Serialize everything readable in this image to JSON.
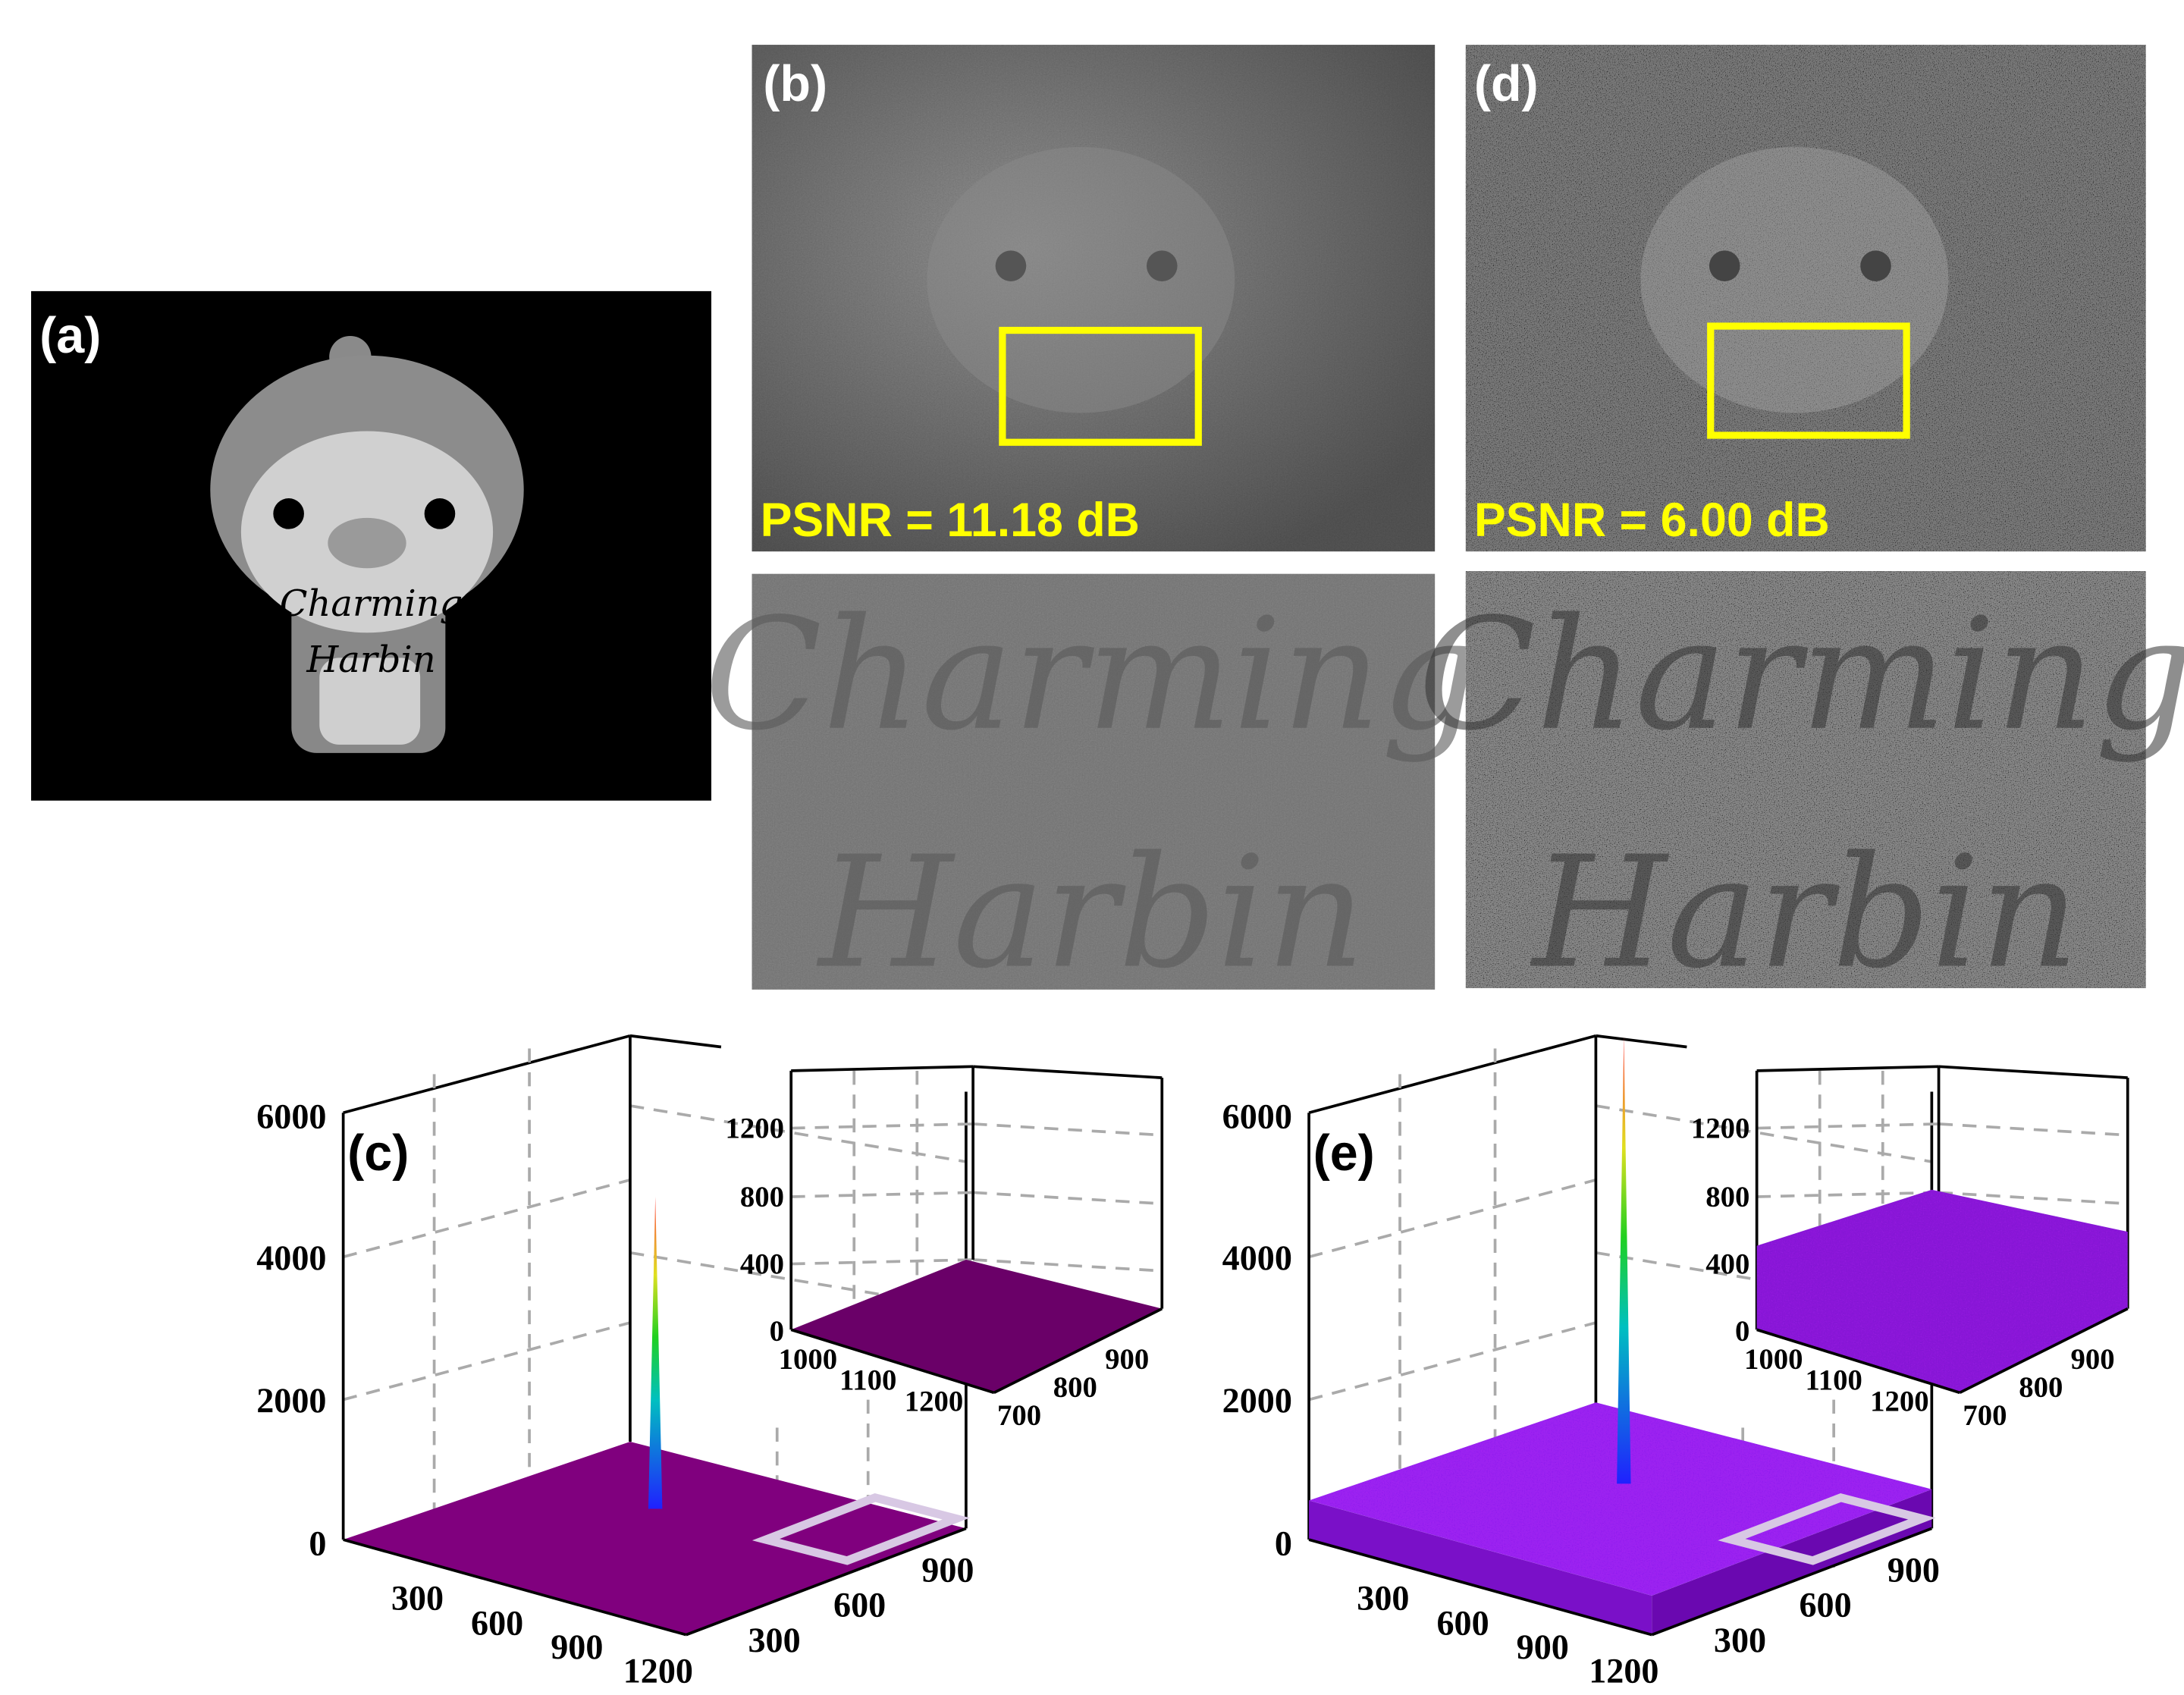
{
  "panels": {
    "a": {
      "label": "(a)",
      "text": [
        "Charming",
        "Harbin"
      ]
    },
    "b": {
      "label": "(b)",
      "psnr": "PSNR = 11.18 dB"
    },
    "d": {
      "label": "(d)",
      "psnr": "PSNR = 6.00 dB"
    },
    "c": {
      "label": "(c)",
      "z_ticks": [
        6000,
        4000,
        2000,
        0
      ],
      "x_ticks": [
        300,
        600,
        900,
        1200
      ],
      "y_ticks": [
        300,
        600,
        900
      ],
      "inset": {
        "z_ticks": [
          1200,
          800,
          400,
          0
        ],
        "x_ticks": [
          1000,
          1100,
          1200
        ],
        "y_ticks": [
          700,
          800,
          900
        ]
      }
    },
    "e": {
      "label": "(e)",
      "z_ticks": [
        6000,
        4000,
        2000,
        0
      ],
      "x_ticks": [
        300,
        600,
        900,
        1200
      ],
      "y_ticks": [
        300,
        600,
        900
      ],
      "inset": {
        "z_ticks": [
          1200,
          800,
          400,
          0
        ],
        "x_ticks": [
          1000,
          1100,
          1200
        ],
        "y_ticks": [
          700,
          800,
          900
        ]
      }
    }
  }
}
